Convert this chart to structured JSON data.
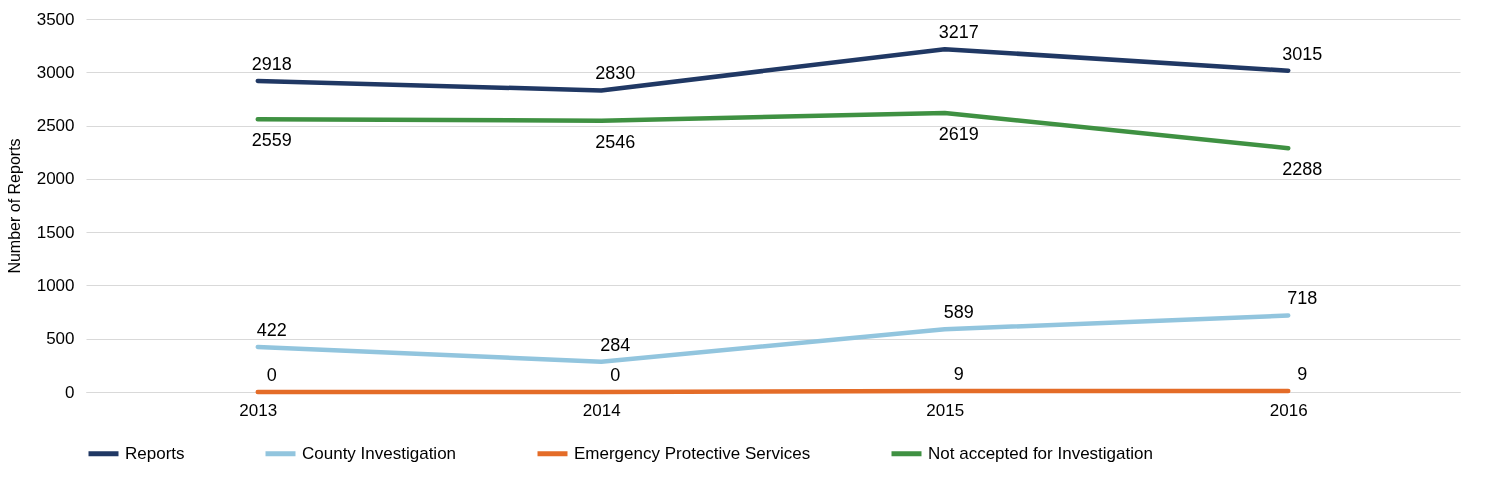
{
  "chart_data": {
    "type": "line",
    "ylabel": "Number of Reports",
    "categories": [
      "2013",
      "2014",
      "2015",
      "2016"
    ],
    "series": [
      {
        "name": "Reports",
        "color": "#203864",
        "values": [
          2918,
          2830,
          3217,
          3015
        ]
      },
      {
        "name": "County Investigation",
        "color": "#92c5de",
        "values": [
          422,
          284,
          589,
          718
        ]
      },
      {
        "name": "Emergency Protective Services",
        "color": "#e46c28",
        "values": [
          0,
          0,
          9,
          9
        ]
      },
      {
        "name": "Not accepted for Investigation",
        "color": "#3f9142",
        "values": [
          2559,
          2546,
          2619,
          2288
        ]
      }
    ],
    "ylim": [
      0,
      3500
    ],
    "yticks": [
      0,
      500,
      1000,
      1500,
      2000,
      2500,
      3000,
      3500
    ],
    "grid": "y",
    "legend": "bottom",
    "data_labels": true,
    "marker": "none",
    "line_style": "solid"
  }
}
